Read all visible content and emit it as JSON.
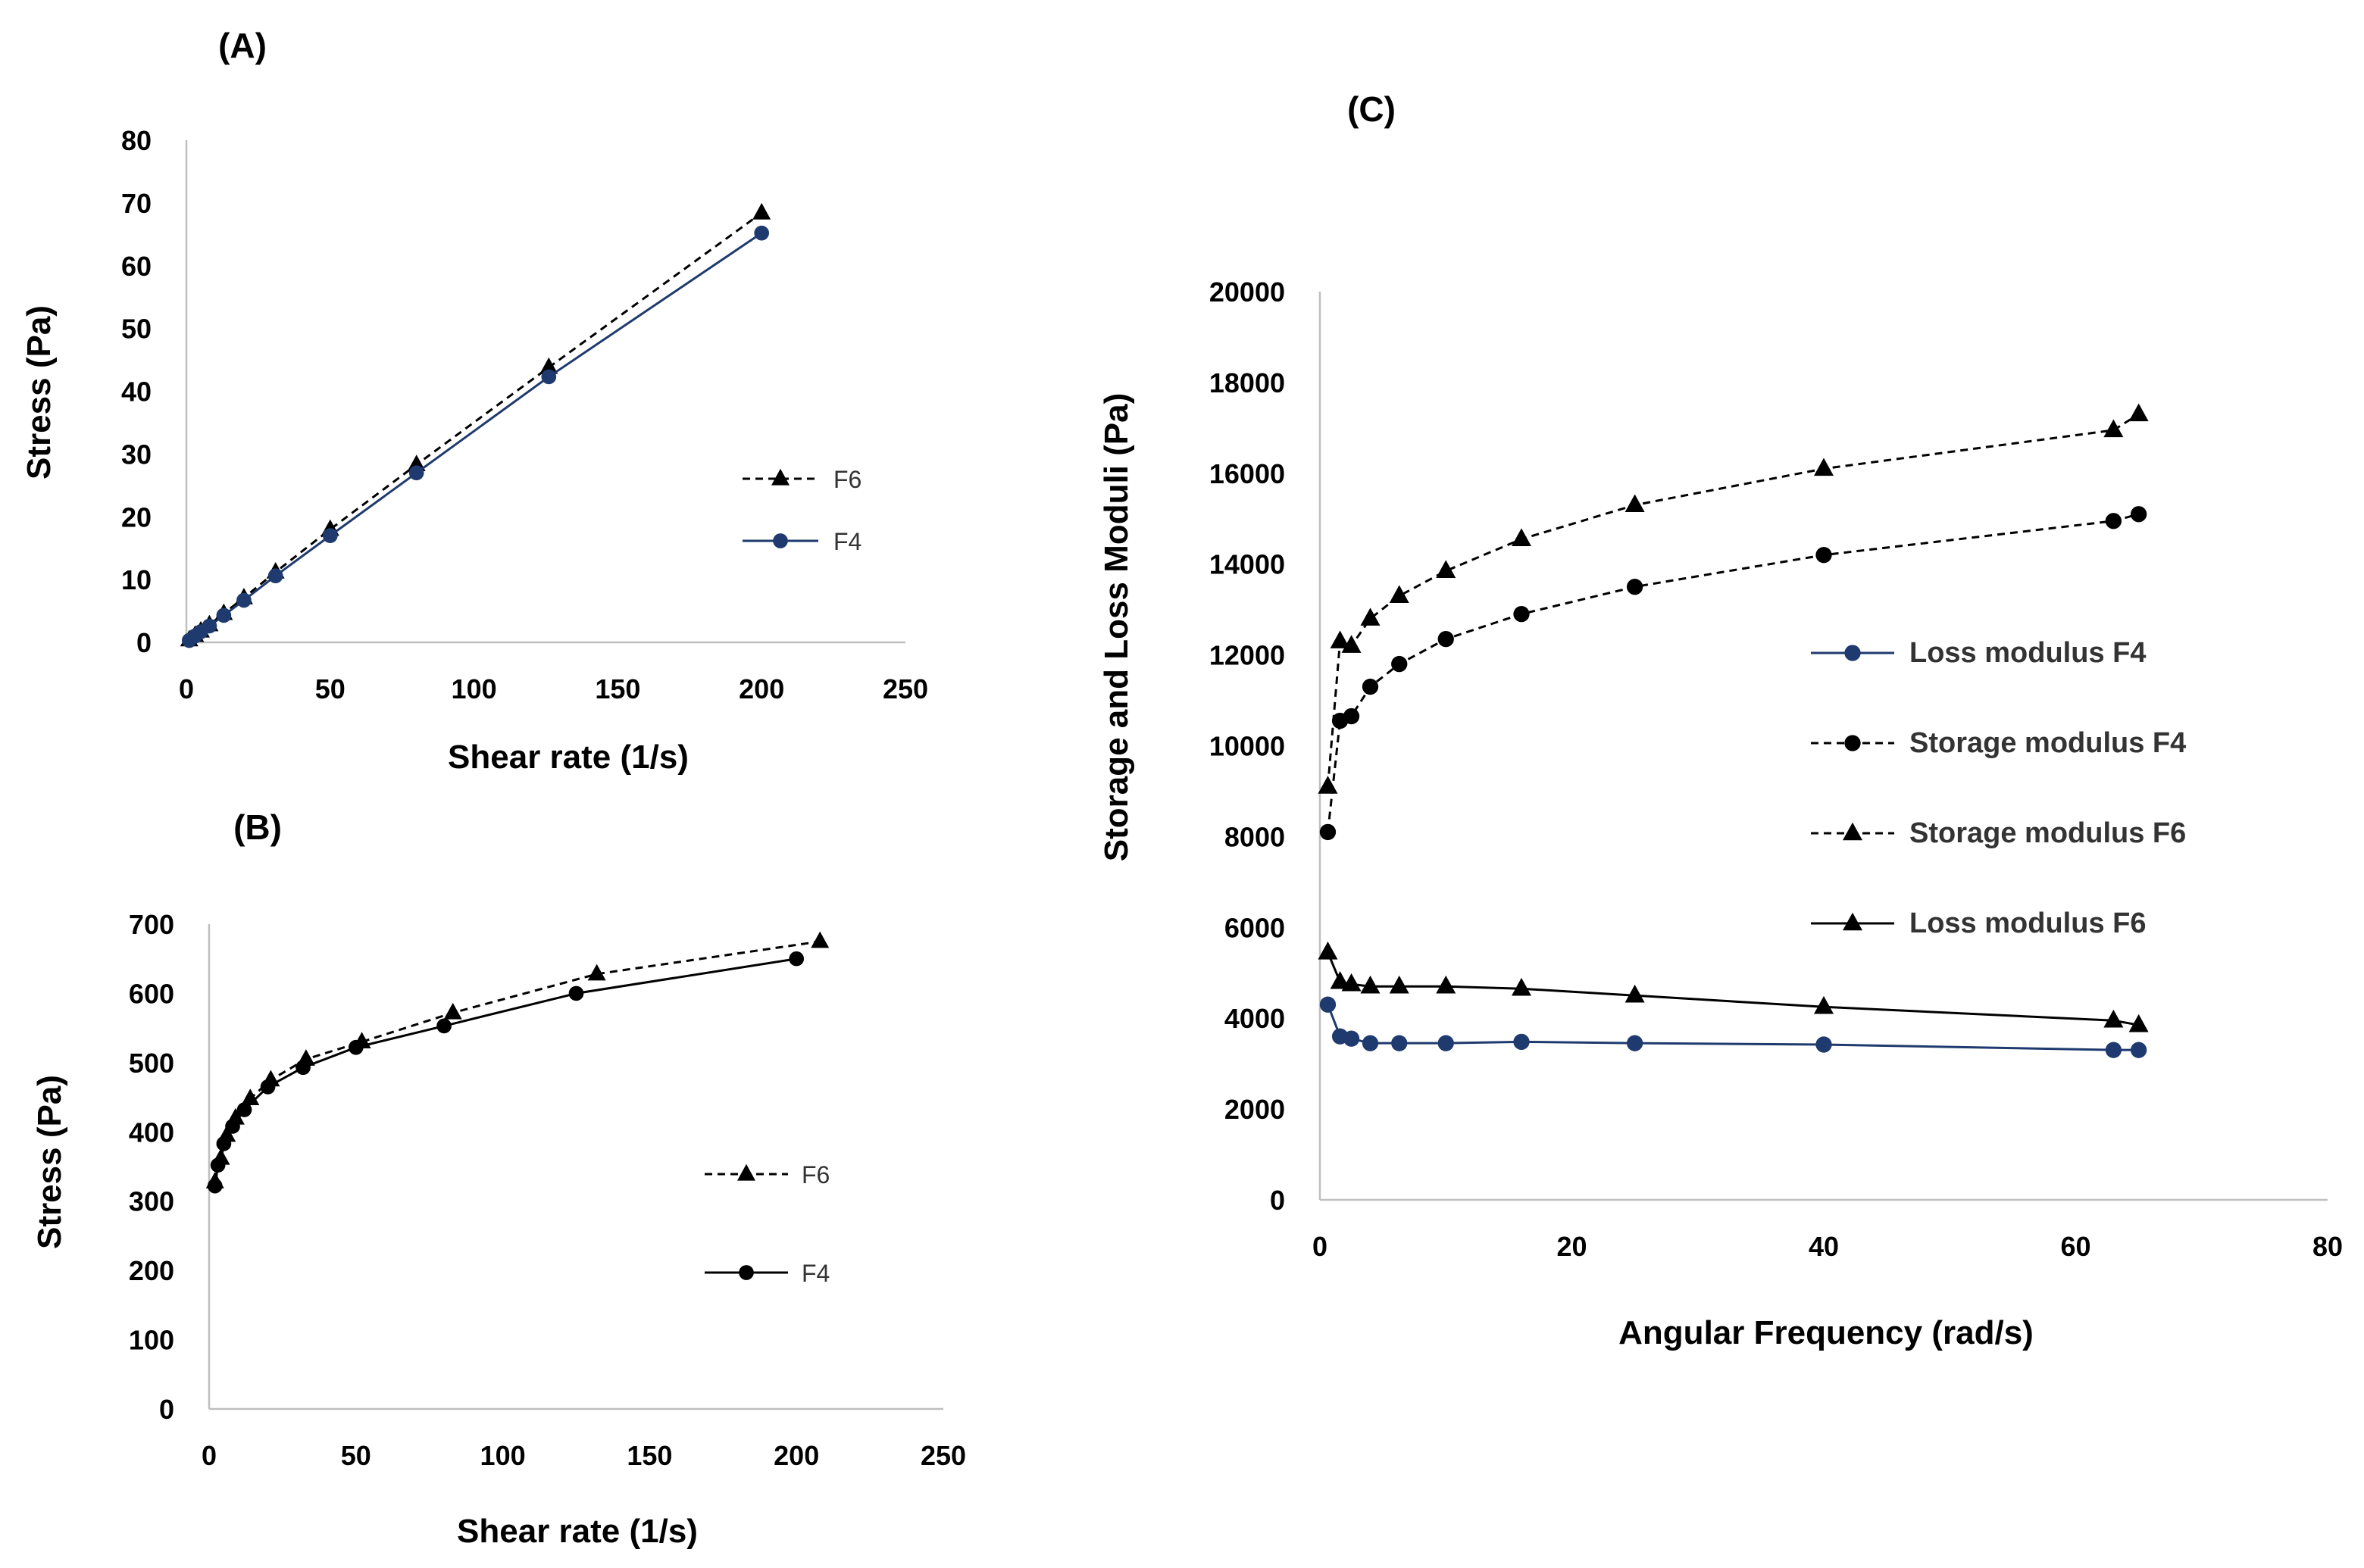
{
  "chart_data": [
    {
      "id": "A",
      "type": "line",
      "panel_label": "(A)",
      "xlabel": "Shear rate (1/s)",
      "ylabel": "Stress (Pa)",
      "xlim": [
        0,
        250
      ],
      "ylim": [
        0,
        80
      ],
      "xticks": [
        "0",
        "50",
        "100",
        "150",
        "200",
        "250"
      ],
      "yticks": [
        "0",
        "10",
        "20",
        "30",
        "40",
        "50",
        "60",
        "70",
        "80"
      ],
      "grid": false,
      "legend_position": "right",
      "series": [
        {
          "name": "F6",
          "style": "dashed",
          "marker": "triangle",
          "color": "#000000",
          "x": [
            1,
            3,
            5,
            8,
            13,
            20,
            31,
            50,
            80,
            126,
            200
          ],
          "y": [
            0.4,
            1.1,
            1.8,
            2.8,
            4.6,
            7.1,
            11.2,
            18.0,
            28.3,
            43.8,
            68.4
          ]
        },
        {
          "name": "F4",
          "style": "solid",
          "marker": "circle",
          "color": "#1f3a6e",
          "x": [
            1,
            3,
            5,
            8,
            13,
            20,
            31,
            50,
            80,
            126,
            200
          ],
          "y": [
            0.3,
            1.0,
            1.7,
            2.6,
            4.3,
            6.7,
            10.6,
            17.0,
            27.0,
            42.3,
            65.2
          ]
        }
      ]
    },
    {
      "id": "B",
      "type": "line",
      "panel_label": "(B)",
      "xlabel": "Shear rate (1/s)",
      "ylabel": "Stress (Pa)",
      "xlim": [
        0,
        250
      ],
      "ylim": [
        0,
        700
      ],
      "xticks": [
        "0",
        "50",
        "100",
        "150",
        "200",
        "250"
      ],
      "yticks": [
        "0",
        "100",
        "200",
        "300",
        "400",
        "500",
        "600",
        "700"
      ],
      "grid": false,
      "legend_position": "right",
      "series": [
        {
          "name": "F6",
          "style": "dashed",
          "marker": "triangle",
          "color": "#000000",
          "x": [
            2,
            4,
            6,
            9,
            14,
            21,
            33,
            52,
            83,
            132,
            208
          ],
          "y": [
            328,
            362,
            395,
            420,
            448,
            475,
            505,
            530,
            572,
            628,
            675
          ]
        },
        {
          "name": "F4",
          "style": "solid",
          "marker": "circle",
          "color": "#000000",
          "x": [
            2,
            3,
            5,
            8,
            12,
            20,
            32,
            50,
            80,
            125,
            200
          ],
          "y": [
            322,
            352,
            383,
            408,
            432,
            465,
            493,
            522,
            553,
            600,
            650
          ]
        }
      ]
    },
    {
      "id": "C",
      "type": "line",
      "panel_label": "(C)",
      "xlabel": "Angular Frequency (rad/s)",
      "ylabel": "Storage and Loss Moduli (Pa)",
      "xlim": [
        0,
        80
      ],
      "ylim": [
        0,
        20000
      ],
      "xticks": [
        "0",
        "20",
        "40",
        "60",
        "80"
      ],
      "yticks": [
        "0",
        "2000",
        "4000",
        "6000",
        "8000",
        "10000",
        "12000",
        "14000",
        "16000",
        "18000",
        "20000"
      ],
      "grid": false,
      "legend_position": "center-right",
      "series": [
        {
          "name": "Loss modulus F4",
          "style": "solid",
          "marker": "circle",
          "color": "#1f3a6e",
          "x": [
            0.63,
            1.6,
            2.5,
            4,
            6.3,
            10,
            16,
            25,
            40,
            63,
            65
          ],
          "y": [
            4300,
            3600,
            3550,
            3450,
            3450,
            3450,
            3480,
            3450,
            3420,
            3300,
            3300
          ]
        },
        {
          "name": "Storage modulus F4",
          "style": "dashed",
          "marker": "circle",
          "color": "#000000",
          "x": [
            0.63,
            1.6,
            2.5,
            4,
            6.3,
            10,
            16,
            25,
            40,
            63,
            65
          ],
          "y": [
            8100,
            10550,
            10650,
            11300,
            11800,
            12350,
            12900,
            13500,
            14200,
            14950,
            15100
          ]
        },
        {
          "name": "Storage modulus F6",
          "style": "dashed",
          "marker": "triangle",
          "color": "#000000",
          "x": [
            0.63,
            1.6,
            2.5,
            4,
            6.3,
            10,
            16,
            25,
            40,
            63,
            65
          ],
          "y": [
            9100,
            12300,
            12200,
            12800,
            13300,
            13850,
            14550,
            15300,
            16100,
            16950,
            17300
          ]
        },
        {
          "name": "Loss modulus F6",
          "style": "solid",
          "marker": "triangle",
          "color": "#000000",
          "x": [
            0.63,
            1.6,
            2.5,
            4,
            6.3,
            10,
            16,
            25,
            40,
            63,
            65
          ],
          "y": [
            5450,
            4800,
            4750,
            4700,
            4700,
            4700,
            4650,
            4500,
            4250,
            3950,
            3850
          ]
        }
      ]
    }
  ]
}
